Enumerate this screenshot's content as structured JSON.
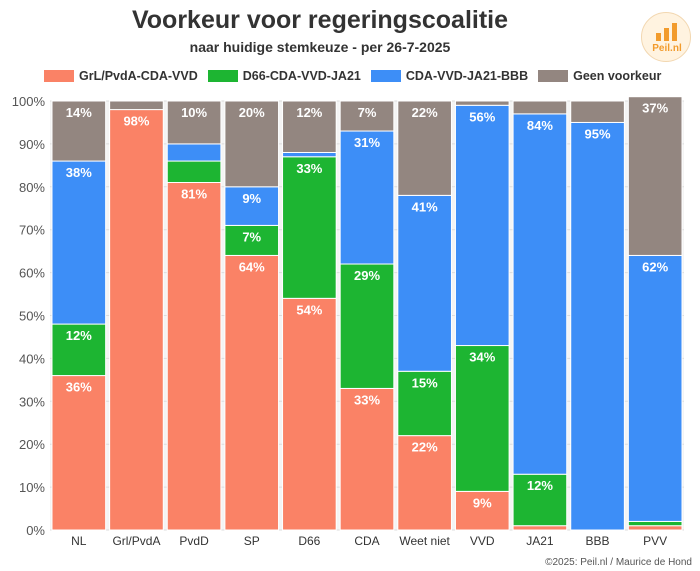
{
  "title": "Voorkeur voor regeringscoalitie",
  "subtitle": "naar huidige stemkeuze - per 26-7-2025",
  "logo_text": "Peil.nl",
  "credit": "©2025: Peil.nl / Maurice de Hond",
  "chart_data": {
    "type": "bar",
    "stacked": true,
    "categories": [
      "NL",
      "Grl/PvdA",
      "PvdD",
      "SP",
      "D66",
      "CDA",
      "Weet niet",
      "VVD",
      "JA21",
      "BBB",
      "PVV"
    ],
    "series": [
      {
        "name": "GrL/PvdA-CDA-VVD",
        "color": "#fa8266",
        "values": [
          36,
          98,
          81,
          64,
          54,
          33,
          22,
          9,
          1,
          0,
          1
        ],
        "labels": [
          "36%",
          "98%",
          "81%",
          "64%",
          "54%",
          "33%",
          "22%",
          "9%",
          "",
          "",
          ""
        ]
      },
      {
        "name": "D66-CDA-VVD-JA21",
        "color": "#1db532",
        "values": [
          12,
          0,
          5,
          7,
          33,
          29,
          15,
          34,
          12,
          0,
          1
        ],
        "labels": [
          "12%",
          "",
          "",
          "7%",
          "33%",
          "29%",
          "15%",
          "34%",
          "12%",
          "",
          ""
        ]
      },
      {
        "name": "CDA-VVD-JA21-BBB",
        "color": "#3d8ef7",
        "values": [
          38,
          0,
          4,
          9,
          1,
          31,
          41,
          56,
          84,
          95,
          62
        ],
        "labels": [
          "38%",
          "",
          "",
          "9%",
          "",
          "31%",
          "41%",
          "56%",
          "84%",
          "95%",
          "62%"
        ]
      },
      {
        "name": "Geen voorkeur",
        "color": "#938680",
        "values": [
          14,
          2,
          10,
          20,
          12,
          7,
          22,
          1,
          3,
          5,
          37
        ],
        "labels": [
          "14%",
          "",
          "10%",
          "20%",
          "12%",
          "7%",
          "22%",
          "",
          "",
          "",
          "37%"
        ]
      }
    ],
    "y_ticks": [
      "0%",
      "10%",
      "20%",
      "30%",
      "40%",
      "50%",
      "60%",
      "70%",
      "80%",
      "90%",
      "100%"
    ],
    "ylim": [
      0,
      100
    ],
    "grid": true,
    "legend_position": "top"
  }
}
